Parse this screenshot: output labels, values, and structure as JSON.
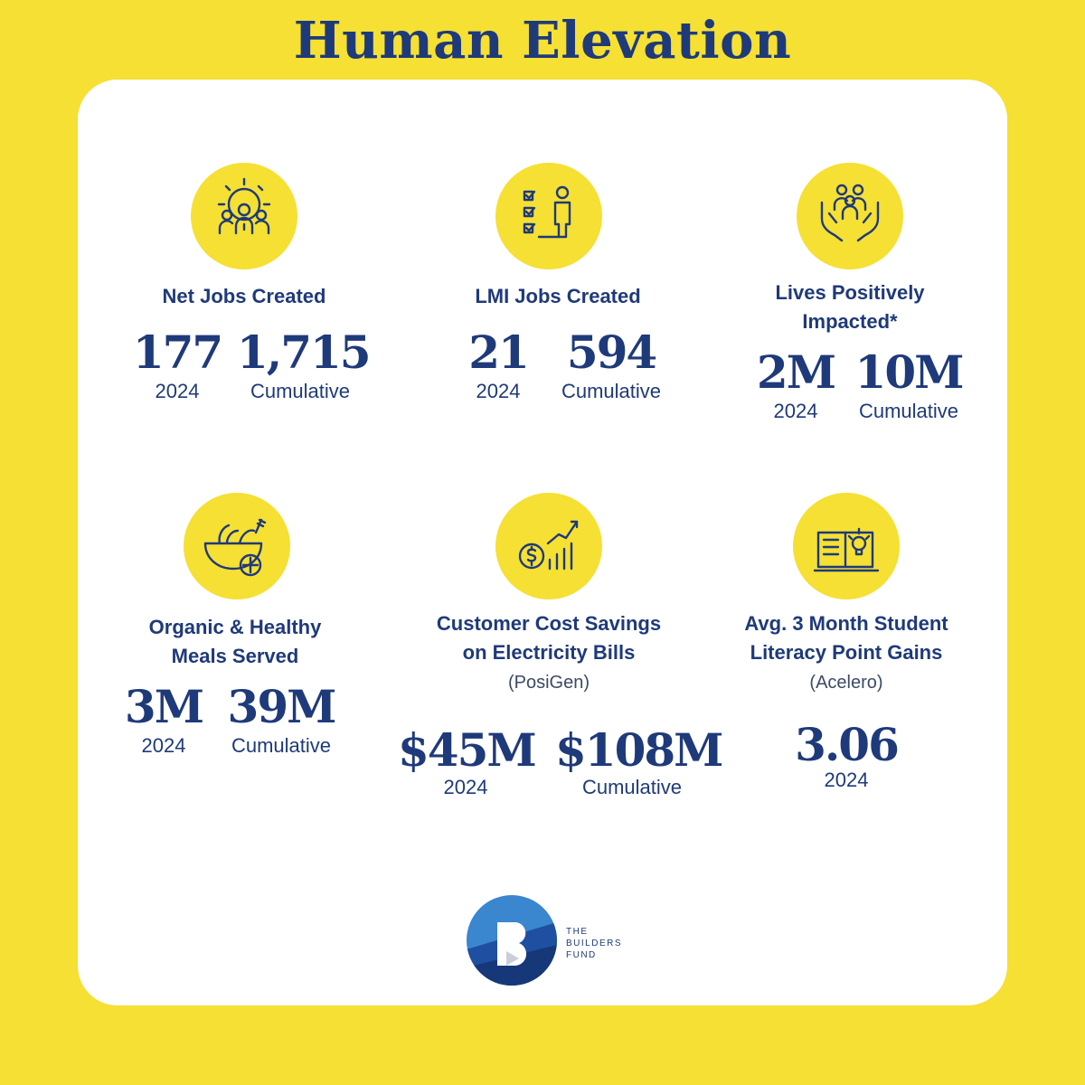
{
  "title": "Human Elevation",
  "metrics": [
    {
      "icon": "gear-team-icon",
      "label_lines": [
        "Net Jobs Created"
      ],
      "values": [
        {
          "value": "177",
          "caption": "2024"
        },
        {
          "value": "1,715",
          "caption": "Cumulative"
        }
      ]
    },
    {
      "icon": "checklist-person-icon",
      "label_lines": [
        "LMI Jobs Created"
      ],
      "values": [
        {
          "value": "21",
          "caption": "2024"
        },
        {
          "value": "594",
          "caption": "Cumulative"
        }
      ]
    },
    {
      "icon": "hands-people-icon",
      "label_lines": [
        "Lives Positively",
        "Impacted*"
      ],
      "values": [
        {
          "value": "2M",
          "caption": "2024"
        },
        {
          "value": "10M",
          "caption": "Cumulative"
        }
      ]
    },
    {
      "icon": "salad-bowl-icon",
      "label_lines": [
        "Organic & Healthy",
        "Meals Served"
      ],
      "values": [
        {
          "value": "3M",
          "caption": "2024"
        },
        {
          "value": "39M",
          "caption": "Cumulative"
        }
      ]
    },
    {
      "icon": "coin-growth-icon",
      "label_lines": [
        "Customer Cost Savings",
        "on Electricity Bills"
      ],
      "source": "(PosiGen)",
      "values": [
        {
          "value": "$45M",
          "caption": "2024"
        },
        {
          "value": "$108M",
          "caption": "Cumulative"
        }
      ]
    },
    {
      "icon": "book-lightbulb-icon",
      "label_lines": [
        "Avg. 3 Month Student",
        "Literacy Point Gains"
      ],
      "source": "(Acelero)",
      "values": [
        {
          "value": "3.06",
          "caption": "2024"
        }
      ]
    }
  ],
  "logo": {
    "lines": [
      "THE",
      "BUILDERS",
      "FUND"
    ]
  },
  "colors": {
    "background": "#f5e033",
    "card": "#ffffff",
    "navy": "#1f3a7a"
  }
}
